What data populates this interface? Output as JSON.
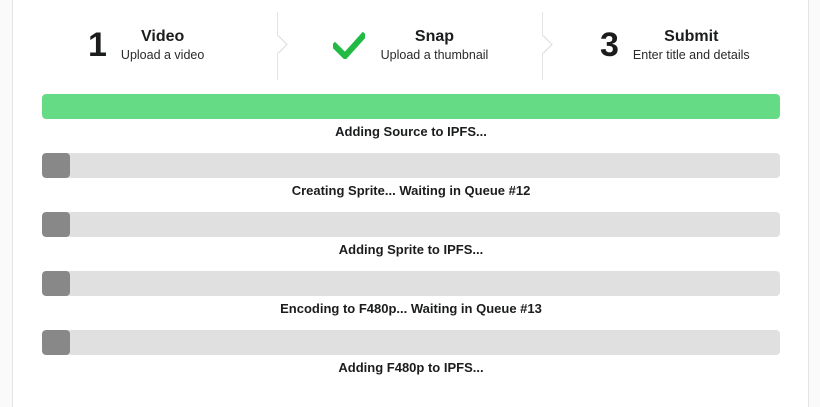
{
  "steps": [
    {
      "number": "1",
      "title": "Video",
      "description": "Upload a video",
      "icon": null
    },
    {
      "number": "",
      "title": "Snap",
      "description": "Upload a thumbnail",
      "icon": "checkmark-icon"
    },
    {
      "number": "3",
      "title": "Submit",
      "description": "Enter title and details",
      "icon": null
    }
  ],
  "colors": {
    "success": "#66db85",
    "pending": "#888888",
    "track": "#e0e0e0",
    "check": "#21ba45"
  },
  "progress": [
    {
      "label": "Adding Source to IPFS...",
      "percent": 100
    },
    {
      "label": "Creating Sprite... Waiting in Queue #12",
      "percent": 0
    },
    {
      "label": "Adding Sprite to IPFS...",
      "percent": 0
    },
    {
      "label": "Encoding to F480p... Waiting in Queue #13",
      "percent": 0
    },
    {
      "label": "Adding F480p to IPFS...",
      "percent": 0
    }
  ]
}
